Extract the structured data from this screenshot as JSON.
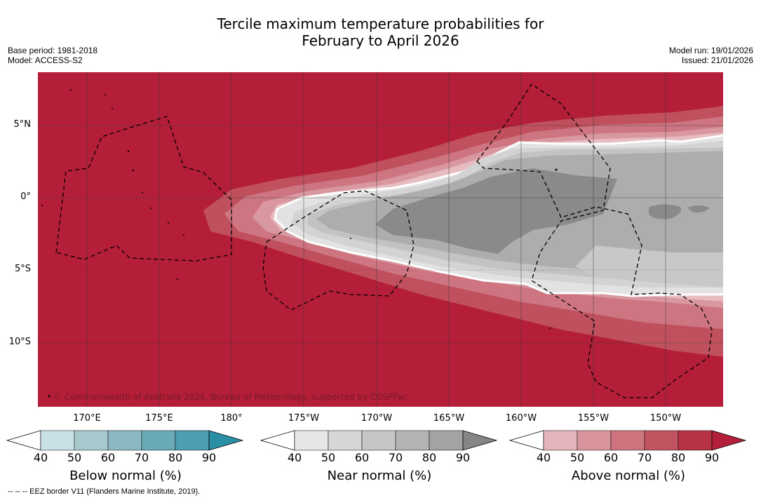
{
  "title_line1": "Tercile maximum temperature probabilities for",
  "title_line2": "February to April 2026",
  "base_period": "Base period: 1981-2018",
  "model": "Model: ACCESS-S2",
  "model_run": "Model run: 19/01/2026",
  "issued": "Issued: 21/01/2026",
  "copyright": "© Commonwealth of Australia 2026, Bureau of Meteorology, supported by COSPPac",
  "footnote": "--  --  -- EEZ border V11 (Flanders Marine Institute, 2019).",
  "lat_ticks": [
    "5°N",
    "0°",
    "5°S",
    "10°S"
  ],
  "lon_ticks": [
    "170°E",
    "175°E",
    "180°",
    "175°W",
    "170°W",
    "165°W",
    "160°W",
    "155°W",
    "150°W"
  ],
  "colorbars": {
    "below": {
      "label": "Below normal (%)",
      "ticks": [
        "40",
        "50",
        "60",
        "70",
        "80",
        "90"
      ],
      "colors": [
        "#ffffff",
        "#c9e1e6",
        "#a6c9ce",
        "#8ab9c3",
        "#6aaab8",
        "#4b9fb0",
        "#2a8fa5"
      ]
    },
    "near": {
      "label": "Near normal (%)",
      "ticks": [
        "40",
        "50",
        "60",
        "70",
        "80",
        "90"
      ],
      "colors": [
        "#ffffff",
        "#e6e6e6",
        "#d6d6d6",
        "#c6c6c6",
        "#b4b4b4",
        "#a3a3a3",
        "#858585"
      ]
    },
    "above": {
      "label": "Above normal (%)",
      "ticks": [
        "40",
        "50",
        "60",
        "70",
        "80",
        "90"
      ],
      "colors": [
        "#ffffff",
        "#e3b5bb",
        "#d8959c",
        "#cd747e",
        "#c25461",
        "#b73446",
        "#b41f3a"
      ]
    }
  },
  "colors": {
    "background_red": "#b51e39",
    "grid": "#3a3a3a"
  }
}
